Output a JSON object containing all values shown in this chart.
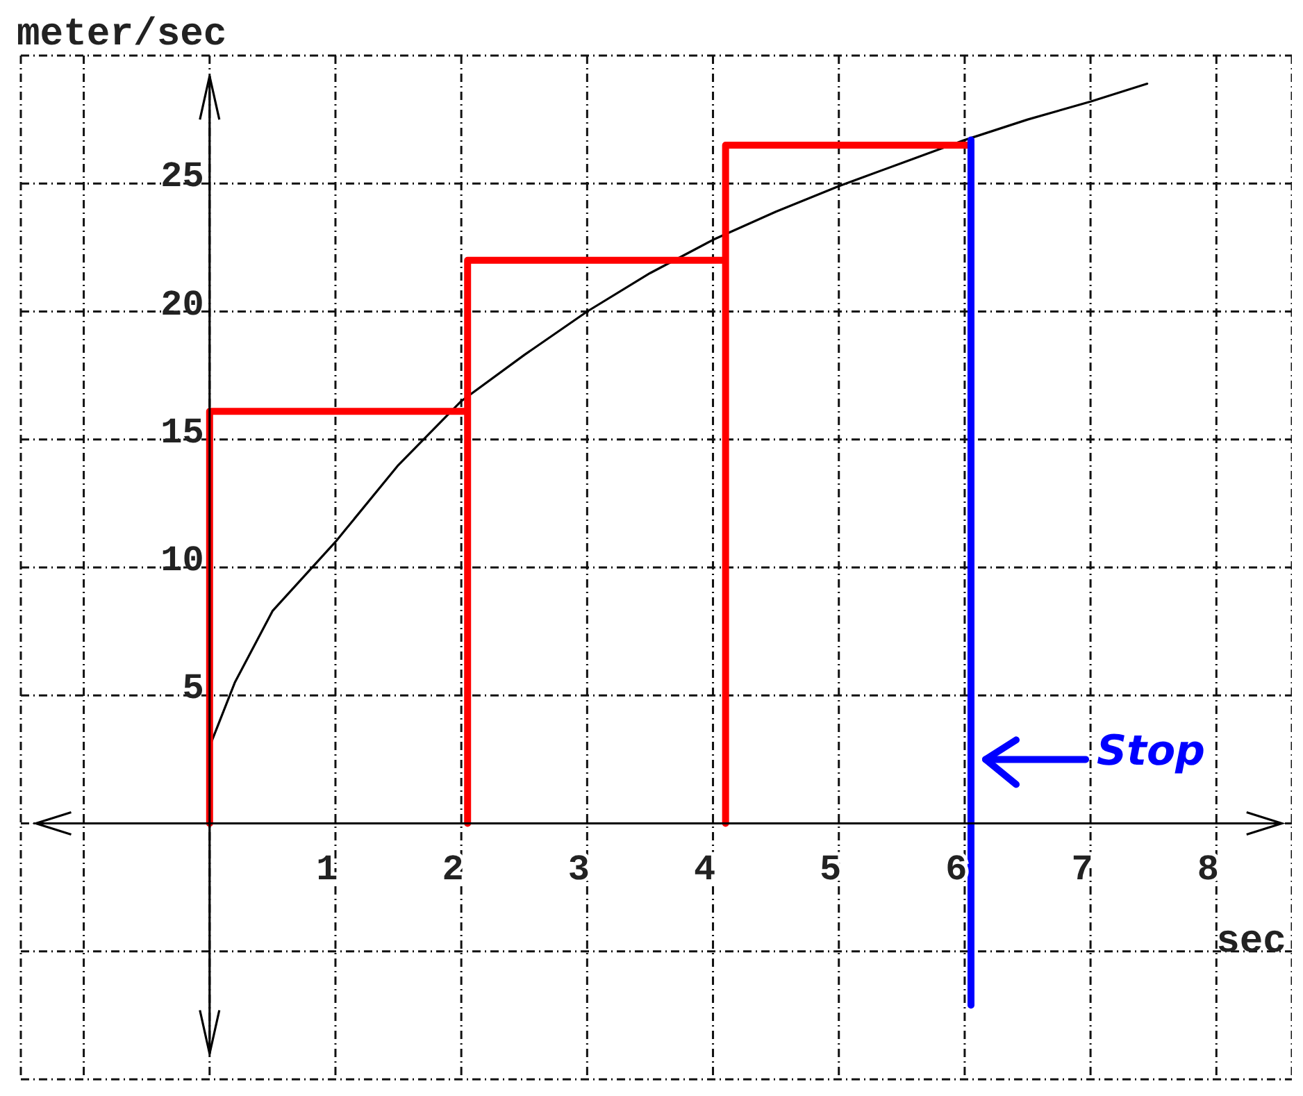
{
  "chart_data": {
    "type": "line",
    "xlabel": "sec",
    "ylabel": "meter/sec",
    "xlim": [
      -1.5,
      8.6
    ],
    "ylim": [
      -10,
      30
    ],
    "xticks": [
      {
        "value": -1,
        "label": null
      },
      {
        "value": 0,
        "label": null
      },
      1,
      2,
      3,
      4,
      5,
      6,
      7,
      8
    ],
    "yticks": [
      {
        "value": -10,
        "label": null
      },
      {
        "value": -5,
        "label": null
      },
      {
        "value": 0,
        "label": null
      },
      5,
      10,
      15,
      20,
      25,
      {
        "value": 30,
        "label": null
      }
    ],
    "grid": true,
    "marker": "none",
    "annotations": [
      {
        "text": "Stop",
        "x": 6.1,
        "y": 2.5
      }
    ],
    "series": [
      {
        "color": "#000000",
        "x": [
          0,
          0.2,
          0.5,
          1,
          1.5,
          2,
          2.5,
          3,
          3.5,
          4,
          4.5,
          5,
          5.5,
          6,
          6.5,
          7,
          7.45
        ],
        "values": [
          3,
          5.5,
          8.3,
          11,
          14,
          16.5,
          18.3,
          20,
          21.5,
          22.8,
          23.9,
          24.9,
          25.8,
          26.7,
          27.5,
          28.2,
          28.9
        ]
      },
      {
        "color": "#ff0000",
        "x": [
          0,
          0,
          2.05,
          2.05,
          2.05,
          4.1,
          4.1,
          4.1,
          6.05,
          6.05
        ],
        "values": [
          0,
          16.1,
          16.1,
          0,
          22,
          22,
          0,
          26.5,
          26.5,
          0
        ]
      },
      {
        "color": "#0000ff",
        "x": [
          6.05,
          6.05
        ],
        "values": [
          26.7,
          -7.1
        ]
      }
    ]
  }
}
